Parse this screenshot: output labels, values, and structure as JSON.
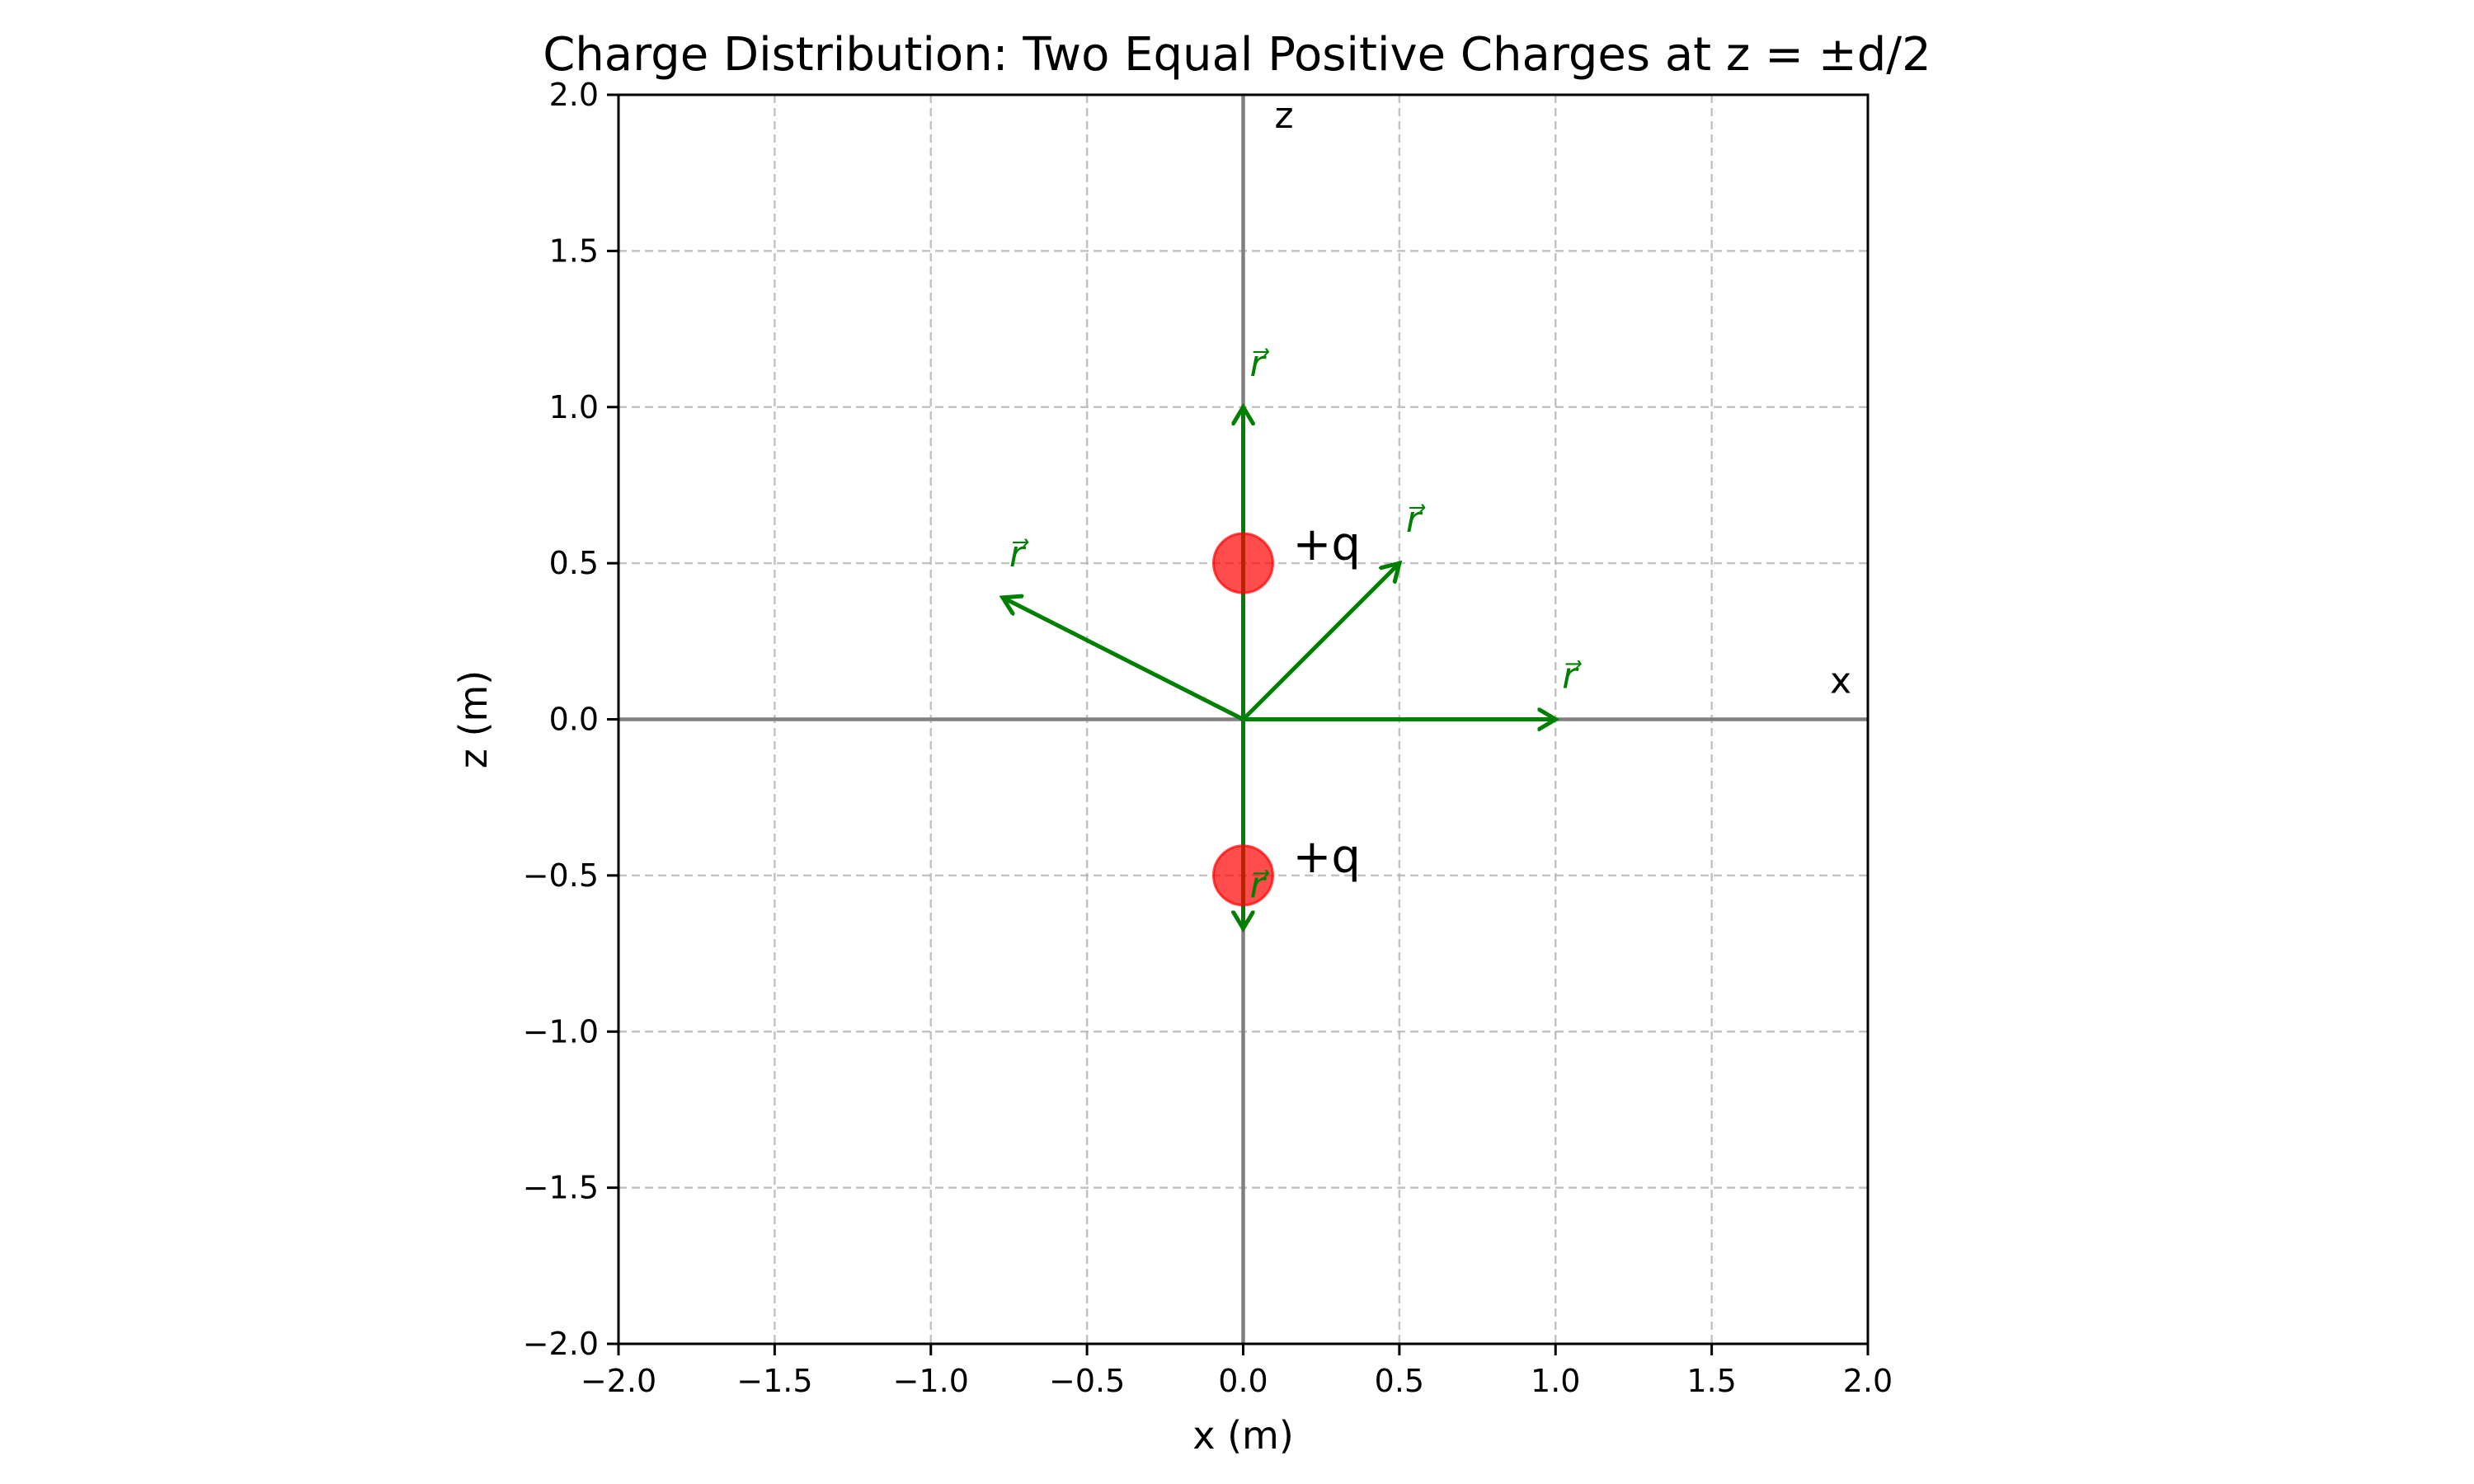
{
  "chart_data": {
    "type": "scatter",
    "title": "Charge Distribution: Two Equal Positive Charges at z = ±d/2",
    "xlabel": "x (m)",
    "ylabel": "z (m)",
    "xlim": [
      -2.0,
      2.0
    ],
    "ylim": [
      -2.0,
      2.0
    ],
    "xticks": [
      -2.0,
      -1.5,
      -1.0,
      -0.5,
      0.0,
      0.5,
      1.0,
      1.5,
      2.0
    ],
    "yticks": [
      -2.0,
      -1.5,
      -1.0,
      -0.5,
      0.0,
      0.5,
      1.0,
      1.5,
      2.0
    ],
    "grid": true,
    "axis_lines": [
      {
        "axis": "x",
        "label": "x"
      },
      {
        "axis": "z",
        "label": "z"
      }
    ],
    "charges": [
      {
        "x": 0.0,
        "z": 0.5,
        "label": "+q",
        "color": "#ff0000"
      },
      {
        "x": 0.0,
        "z": -0.5,
        "label": "+q",
        "color": "#ff0000"
      }
    ],
    "vectors": [
      {
        "x0": 0.0,
        "z0": 0.0,
        "x1": 1.0,
        "z1": 0.0,
        "label": "r⃗"
      },
      {
        "x0": 0.0,
        "z0": 0.0,
        "x1": 0.5,
        "z1": 0.5,
        "label": "r⃗"
      },
      {
        "x0": 0.0,
        "z0": 0.0,
        "x1": 0.0,
        "z1": 1.0,
        "label": "r⃗"
      },
      {
        "x0": 0.0,
        "z0": 0.0,
        "x1": -0.77,
        "z1": 0.39,
        "label": "r⃗"
      },
      {
        "x0": 0.0,
        "z0": 0.0,
        "x1": 0.0,
        "z1": -0.67,
        "label": "r⃗"
      }
    ],
    "vector_color": "#008000"
  }
}
